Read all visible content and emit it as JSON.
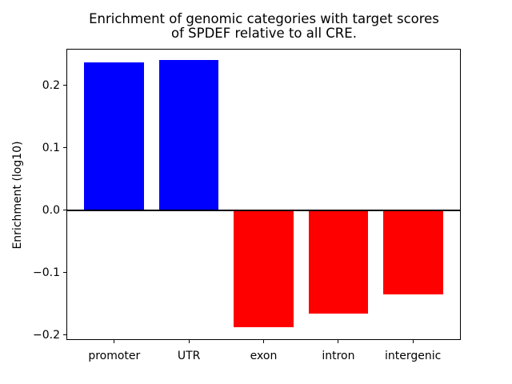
{
  "chart_data": {
    "type": "bar",
    "title": "Enrichment of genomic categories with target scores\nof SPDEF relative to all CRE.",
    "title_lines": [
      "Enrichment of genomic categories with target scores",
      "of SPDEF relative to all CRE."
    ],
    "xlabel": "",
    "ylabel": "Enrichment (log10)",
    "categories": [
      "promoter",
      "UTR",
      "exon",
      "intron",
      "intergenic"
    ],
    "values": [
      0.236,
      0.241,
      -0.188,
      -0.166,
      -0.135
    ],
    "bar_colors": [
      "#0000ff",
      "#0000ff",
      "#ff0000",
      "#ff0000",
      "#ff0000"
    ],
    "positive_color": "#0000ff",
    "negative_color": "#ff0000",
    "axis_color": "#000000",
    "background_color": "#ffffff",
    "yticks": [
      0.2,
      0.1,
      0.0,
      -0.1,
      -0.2
    ],
    "ytick_labels": [
      "0.2",
      "0.1",
      "0.0",
      "−0.1",
      "−0.2"
    ],
    "ylim": [
      -0.2083,
      0.2583
    ],
    "xlim": [
      -0.64,
      4.64
    ],
    "bar_width": 0.8,
    "zero_line_y": 0.0,
    "grid": false,
    "legend": null
  }
}
